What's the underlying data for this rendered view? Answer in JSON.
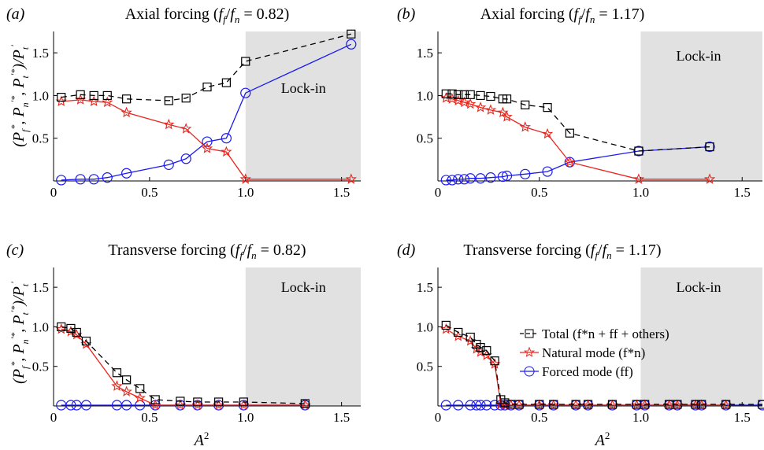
{
  "colors": {
    "total": "#000000",
    "natural": "#e8261e",
    "forced": "#1a1af0",
    "lockin_fill": "#e1e1e1"
  },
  "figure": {
    "shared_ylabel": "(P′*f, P′*n, P′*t)/P′t",
    "xlabel": "A²",
    "lockin_label": "Lock-in"
  },
  "legend": {
    "total": "Total (f*n + ff + others)",
    "natural": "Natural mode (f*n)",
    "forced": "Forced mode (ff)"
  },
  "chart_data": [
    {
      "letter": "(a)",
      "title": "Axial forcing (ff/fn = 0.82)",
      "type": "line",
      "xlim": [
        0,
        1.6
      ],
      "ylim": [
        0,
        1.75
      ],
      "xticks": [
        "0",
        "0.5",
        "1.0",
        "1.5"
      ],
      "xtick_values": [
        0,
        0.5,
        1.0,
        1.5
      ],
      "yticks": [
        "0.5",
        "1.0",
        "1.5"
      ],
      "ytick_values": [
        0.5,
        1.0,
        1.5
      ],
      "lockin": [
        1.0,
        1.6
      ],
      "series": [
        {
          "name": "Total",
          "x": [
            0.04,
            0.14,
            0.21,
            0.28,
            0.38,
            0.6,
            0.69,
            0.8,
            0.9,
            1.0,
            1.55
          ],
          "y": [
            0.98,
            1.01,
            1.0,
            1.0,
            0.96,
            0.94,
            0.97,
            1.1,
            1.15,
            1.4,
            1.72
          ]
        },
        {
          "name": "Natural mode",
          "x": [
            0.04,
            0.14,
            0.21,
            0.28,
            0.38,
            0.6,
            0.69,
            0.8,
            0.9,
            1.0,
            1.55
          ],
          "y": [
            0.93,
            0.95,
            0.93,
            0.92,
            0.8,
            0.66,
            0.61,
            0.38,
            0.34,
            0.02,
            0.02
          ]
        },
        {
          "name": "Forced mode",
          "x": [
            0.04,
            0.14,
            0.21,
            0.28,
            0.38,
            0.6,
            0.69,
            0.8,
            0.9,
            1.0,
            1.55
          ],
          "y": [
            0.01,
            0.02,
            0.02,
            0.04,
            0.09,
            0.19,
            0.26,
            0.46,
            0.5,
            1.03,
            1.6
          ]
        }
      ]
    },
    {
      "letter": "(b)",
      "title": "Axial forcing (ff/fn = 1.17)",
      "type": "line",
      "xlim": [
        0,
        1.6
      ],
      "ylim": [
        0,
        1.75
      ],
      "xticks": [
        "0",
        "0.5",
        "1.0",
        "1.5"
      ],
      "xtick_values": [
        0,
        0.5,
        1.0,
        1.5
      ],
      "yticks": [
        "0.5",
        "1.0",
        "1.5"
      ],
      "yticks_shown": true,
      "ytick_values": [
        0.5,
        1.0,
        1.5
      ],
      "lockin": [
        1.0,
        1.6
      ],
      "series": [
        {
          "name": "Total",
          "x": [
            0.04,
            0.07,
            0.1,
            0.13,
            0.16,
            0.21,
            0.26,
            0.32,
            0.34,
            0.43,
            0.54,
            0.65,
            0.99,
            1.34
          ],
          "y": [
            1.02,
            1.02,
            1.01,
            1.01,
            1.01,
            1.0,
            0.99,
            0.96,
            0.96,
            0.89,
            0.86,
            0.56,
            0.35,
            0.4
          ]
        },
        {
          "name": "Natural mode",
          "x": [
            0.04,
            0.07,
            0.1,
            0.13,
            0.16,
            0.21,
            0.26,
            0.32,
            0.34,
            0.43,
            0.54,
            0.65,
            0.99,
            1.34
          ],
          "y": [
            0.97,
            0.96,
            0.94,
            0.92,
            0.9,
            0.86,
            0.83,
            0.8,
            0.75,
            0.63,
            0.55,
            0.22,
            0.02,
            0.02
          ]
        },
        {
          "name": "Forced mode",
          "x": [
            0.04,
            0.07,
            0.1,
            0.13,
            0.16,
            0.21,
            0.26,
            0.32,
            0.34,
            0.43,
            0.54,
            0.65,
            0.99,
            1.34
          ],
          "y": [
            0.01,
            0.01,
            0.02,
            0.02,
            0.03,
            0.03,
            0.04,
            0.05,
            0.06,
            0.08,
            0.11,
            0.22,
            0.35,
            0.4
          ]
        }
      ]
    },
    {
      "letter": "(c)",
      "title": "Transverse forcing (ff/fn = 0.82)",
      "type": "line",
      "xlim": [
        0,
        1.6
      ],
      "ylim": [
        0,
        1.75
      ],
      "xticks": [
        "0",
        "0.5",
        "1.0",
        "1.5"
      ],
      "xtick_values": [
        0,
        0.5,
        1.0,
        1.5
      ],
      "yticks": [
        "0.5",
        "1.0",
        "1.5"
      ],
      "ytick_values": [
        0.5,
        1.0,
        1.5
      ],
      "lockin": [
        1.0,
        1.6
      ],
      "series": [
        {
          "name": "Total",
          "x": [
            0.04,
            0.09,
            0.12,
            0.17,
            0.33,
            0.38,
            0.45,
            0.53,
            0.66,
            0.75,
            0.86,
            0.99,
            1.31
          ],
          "y": [
            1.0,
            0.98,
            0.93,
            0.82,
            0.42,
            0.33,
            0.22,
            0.08,
            0.06,
            0.05,
            0.05,
            0.05,
            0.03
          ]
        },
        {
          "name": "Natural mode",
          "x": [
            0.04,
            0.09,
            0.12,
            0.17,
            0.33,
            0.38,
            0.45,
            0.53,
            0.66,
            0.75,
            0.86,
            0.99,
            1.31
          ],
          "y": [
            0.97,
            0.94,
            0.9,
            0.78,
            0.25,
            0.18,
            0.1,
            0.01,
            0.01,
            0.01,
            0.01,
            0.01,
            0.01
          ]
        },
        {
          "name": "Forced mode",
          "x": [
            0.04,
            0.09,
            0.12,
            0.17,
            0.33,
            0.38,
            0.45,
            0.53,
            0.66,
            0.75,
            0.86,
            0.99,
            1.31
          ],
          "y": [
            0.01,
            0.01,
            0.01,
            0.01,
            0.01,
            0.01,
            0.01,
            0.01,
            0.01,
            0.01,
            0.01,
            0.01,
            0.01
          ]
        }
      ]
    },
    {
      "letter": "(d)",
      "title": "Transverse forcing (ff/fn = 1.17)",
      "type": "line",
      "xlim": [
        0,
        1.6
      ],
      "ylim": [
        0,
        1.75
      ],
      "xticks": [
        "0",
        "0.5",
        "1.0",
        "1.5"
      ],
      "xtick_values": [
        0,
        0.5,
        1.0,
        1.5
      ],
      "yticks": [
        "0.5",
        "1.0",
        "1.5"
      ],
      "ytick_values": [
        0.5,
        1.0,
        1.5
      ],
      "lockin": [
        1.0,
        1.6
      ],
      "series": [
        {
          "name": "Total",
          "x": [
            0.04,
            0.1,
            0.16,
            0.19,
            0.21,
            0.24,
            0.28,
            0.31,
            0.33,
            0.36,
            0.4,
            0.5,
            0.57,
            0.68,
            0.74,
            0.86,
            0.98,
            1.02,
            1.14,
            1.18,
            1.27,
            1.3,
            1.42,
            1.6
          ],
          "y": [
            1.02,
            0.93,
            0.87,
            0.78,
            0.74,
            0.7,
            0.57,
            0.08,
            0.04,
            0.02,
            0.02,
            0.02,
            0.02,
            0.02,
            0.02,
            0.02,
            0.02,
            0.02,
            0.02,
            0.02,
            0.02,
            0.02,
            0.02,
            0.02
          ]
        },
        {
          "name": "Natural mode",
          "x": [
            0.04,
            0.1,
            0.16,
            0.19,
            0.21,
            0.24,
            0.28,
            0.31,
            0.33,
            0.36,
            0.4,
            0.5,
            0.57,
            0.68,
            0.74,
            0.86,
            0.98,
            1.02,
            1.14,
            1.18,
            1.27,
            1.3,
            1.42
          ],
          "y": [
            0.97,
            0.88,
            0.82,
            0.72,
            0.68,
            0.64,
            0.53,
            0.02,
            0.01,
            0.01,
            0.01,
            0.01,
            0.01,
            0.01,
            0.01,
            0.01,
            0.01,
            0.01,
            0.01,
            0.01,
            0.01,
            0.01,
            0.01
          ]
        },
        {
          "name": "Forced mode",
          "x": [
            0.04,
            0.1,
            0.16,
            0.19,
            0.21,
            0.24,
            0.28,
            0.31,
            0.33,
            0.36,
            0.4,
            0.5,
            0.57,
            0.68,
            0.74,
            0.86,
            0.98,
            1.02,
            1.14,
            1.18,
            1.27,
            1.3,
            1.42,
            1.6
          ],
          "y": [
            0.01,
            0.01,
            0.01,
            0.01,
            0.01,
            0.01,
            0.01,
            0.01,
            0.01,
            0.01,
            0.01,
            0.01,
            0.01,
            0.01,
            0.01,
            0.01,
            0.01,
            0.01,
            0.01,
            0.01,
            0.01,
            0.01,
            0.01,
            0.01
          ]
        }
      ]
    }
  ]
}
